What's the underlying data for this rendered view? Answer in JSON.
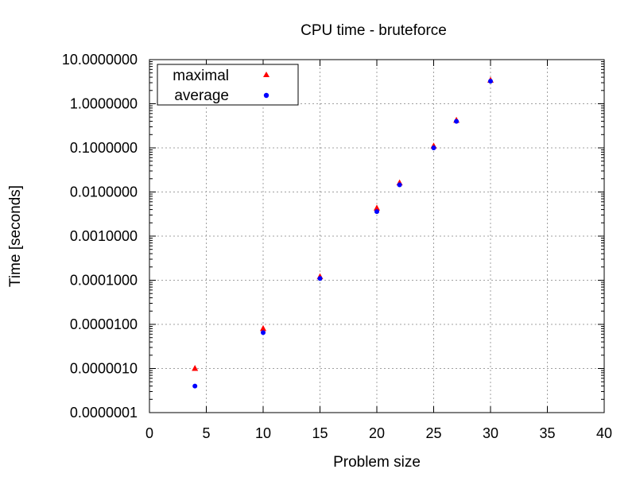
{
  "chart_data": {
    "type": "scatter",
    "title": "CPU time - bruteforce",
    "xlabel": "Problem size",
    "ylabel": "Time [seconds]",
    "xlim": [
      0,
      40
    ],
    "ylim": [
      1e-07,
      10
    ],
    "yscale": "log",
    "grid": true,
    "legend_position": "top-left",
    "x_ticks": [
      0,
      5,
      10,
      15,
      20,
      25,
      30,
      35,
      40
    ],
    "x_tick_labels": [
      "0",
      "5",
      "10",
      "15",
      "20",
      "25",
      "30",
      "35",
      "40"
    ],
    "y_ticks": [
      1e-07,
      1e-06,
      1e-05,
      0.0001,
      0.001,
      0.01,
      0.1,
      1,
      10
    ],
    "y_tick_labels": [
      "0.0000001",
      "0.0000010",
      "0.0000100",
      "0.0001000",
      "0.0010000",
      "0.0100000",
      "0.1000000",
      "1.0000000",
      "10.0000000"
    ],
    "series": [
      {
        "name": "maximal",
        "marker": "triangle",
        "color": "#ff0000",
        "x": [
          4,
          10,
          15,
          20,
          22,
          25,
          27,
          30
        ],
        "y": [
          1e-06,
          8e-06,
          0.00012,
          0.0043,
          0.016,
          0.11,
          0.42,
          3.4
        ]
      },
      {
        "name": "average",
        "marker": "dot",
        "color": "#0000ff",
        "x": [
          4,
          10,
          15,
          20,
          22,
          25,
          27,
          30
        ],
        "y": [
          4e-07,
          6.5e-06,
          0.00011,
          0.0036,
          0.0145,
          0.1,
          0.4,
          3.25
        ]
      }
    ]
  }
}
